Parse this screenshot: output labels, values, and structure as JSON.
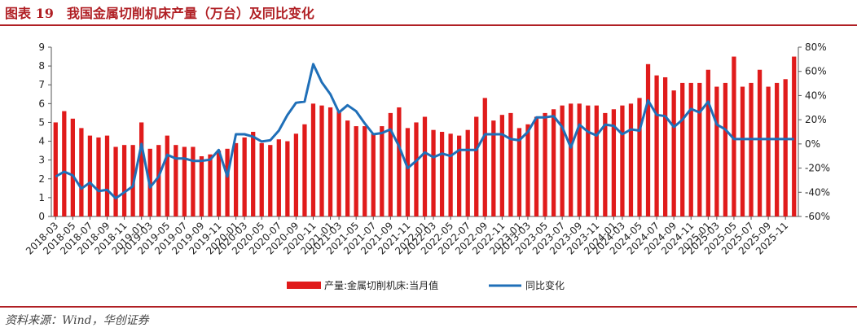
{
  "header": {
    "title": "图表 19　我国金属切削机床产量（万台）及同比变化"
  },
  "footer": {
    "source": "资料来源：Wind，华创证券"
  },
  "chart_data": {
    "type": "bar",
    "title": "",
    "xlabel": "",
    "ylabel": "",
    "colors": {
      "bar": "#e01b1b",
      "line": "#1f6fb8"
    },
    "x": [
      "2018-03",
      "2018-04",
      "2018-05",
      "2018-06",
      "2018-07",
      "2018-08",
      "2018-09",
      "2018-10",
      "2018-11",
      "2018-12",
      "2019-01",
      "2019-03",
      "2019-04",
      "2019-05",
      "2019-06",
      "2019-07",
      "2019-08",
      "2019-09",
      "2019-10",
      "2019-11",
      "2019-12",
      "2020-01",
      "2020-03",
      "2020-04",
      "2020-05",
      "2020-06",
      "2020-07",
      "2020-08",
      "2020-09",
      "2020-10",
      "2020-11",
      "2020-12",
      "2021-01",
      "2021-03",
      "2021-04",
      "2021-05",
      "2021-06",
      "2021-07",
      "2021-08",
      "2021-09",
      "2021-10",
      "2021-11",
      "2021-12",
      "2022-01",
      "2022-03",
      "2022-04",
      "2022-05",
      "2022-06",
      "2022-07",
      "2022-08",
      "2022-09",
      "2022-10",
      "2022-11",
      "2022-12",
      "2023-01",
      "2023-03",
      "2023-04",
      "2023-05",
      "2023-06",
      "2023-07",
      "2023-08",
      "2023-09",
      "2023-10",
      "2023-11",
      "2023-12",
      "2024-01",
      "2024-03",
      "2024-04",
      "2024-05",
      "2024-06",
      "2024-07",
      "2024-08",
      "2024-09",
      "2024-10",
      "2024-11",
      "2024-12",
      "2025-01",
      "2025-03",
      "2025-04",
      "2025-05",
      "2025-06",
      "2025-07",
      "2025-08",
      "2025-09",
      "2025-10",
      "2025-11",
      "2025-12"
    ],
    "x_tick_labels": [
      "2018-03",
      "2018-05",
      "2018-07",
      "2018-09",
      "2018-11",
      "2019-01",
      "2019-03",
      "2019-05",
      "2019-07",
      "2019-09",
      "2019-11",
      "2020-01",
      "2020-03",
      "2020-05",
      "2020-07",
      "2020-09",
      "2020-11",
      "2021-01",
      "2021-03",
      "2021-05",
      "2021-07",
      "2021-09",
      "2021-11",
      "2022-01",
      "2022-03",
      "2022-05",
      "2022-07",
      "2022-09",
      "2022-11",
      "2023-01",
      "2023-03",
      "2023-05",
      "2023-07",
      "2023-09",
      "2023-11",
      "2024-01",
      "2024-03",
      "2024-05",
      "2024-07",
      "2024-09",
      "2024-11",
      "2025-01",
      "2025-03",
      "2025-05",
      "2025-07",
      "2025-09",
      "2025-11"
    ],
    "series": [
      {
        "name": "产量:金属切削机床:当月值",
        "type": "bar",
        "axis": "left",
        "values": [
          5.0,
          5.6,
          5.2,
          4.7,
          4.3,
          4.2,
          4.3,
          3.7,
          3.8,
          3.8,
          5.0,
          3.6,
          3.8,
          4.3,
          3.8,
          3.7,
          3.7,
          3.2,
          3.3,
          3.5,
          3.6,
          3.9,
          4.2,
          4.5,
          3.9,
          3.8,
          4.1,
          4.0,
          4.4,
          4.9,
          6.0,
          5.9,
          5.8,
          5.6,
          5.1,
          4.8,
          4.8,
          4.4,
          4.8,
          5.5,
          5.8,
          4.7,
          5.0,
          5.3,
          4.6,
          4.5,
          4.4,
          4.3,
          4.6,
          5.3,
          6.3,
          5.1,
          5.4,
          5.5,
          4.7,
          4.9,
          5.3,
          5.5,
          5.7,
          5.9,
          6.0,
          6.0,
          5.9,
          5.9,
          5.5,
          5.7,
          5.9,
          6.0,
          6.3,
          8.1,
          7.5,
          7.4,
          6.7,
          7.1,
          7.1,
          7.1,
          7.8,
          6.9,
          7.1,
          8.5,
          6.9,
          7.1,
          7.8,
          6.9,
          7.1,
          7.3,
          8.5
        ]
      },
      {
        "name": "同比变化",
        "type": "line",
        "axis": "right",
        "values": [
          -27,
          -23,
          -26,
          -37,
          -32,
          -39,
          -38,
          -45,
          -40,
          -35,
          0,
          -36,
          -27,
          -9,
          -12,
          -12,
          -14,
          -14,
          -13,
          -5,
          -27,
          8,
          8,
          6,
          2,
          3,
          11,
          24,
          34,
          35,
          66,
          51,
          41,
          26,
          32,
          27,
          17,
          8,
          9,
          12,
          -2,
          -20,
          -14,
          -7,
          -11,
          -8,
          -10,
          -5,
          -5,
          -5,
          8,
          8,
          8,
          4,
          3,
          10,
          22,
          22,
          23,
          14,
          -3,
          16,
          10,
          7,
          16,
          15,
          8,
          12,
          11,
          36,
          24,
          23,
          14,
          20,
          29,
          26,
          35,
          16,
          12,
          4,
          4,
          4,
          4,
          4,
          4,
          4,
          4
        ]
      }
    ],
    "y_left": {
      "lim": [
        0,
        9
      ],
      "ticks": [
        "0",
        "1",
        "2",
        "3",
        "4",
        "5",
        "6",
        "7",
        "8",
        "9"
      ]
    },
    "y_right": {
      "lim": [
        -60,
        80
      ],
      "ticks": [
        "-60%",
        "-40%",
        "-20%",
        "0%",
        "20%",
        "40%",
        "60%",
        "80%"
      ]
    },
    "legend": {
      "placement": "bottom-center"
    },
    "grid": false
  }
}
